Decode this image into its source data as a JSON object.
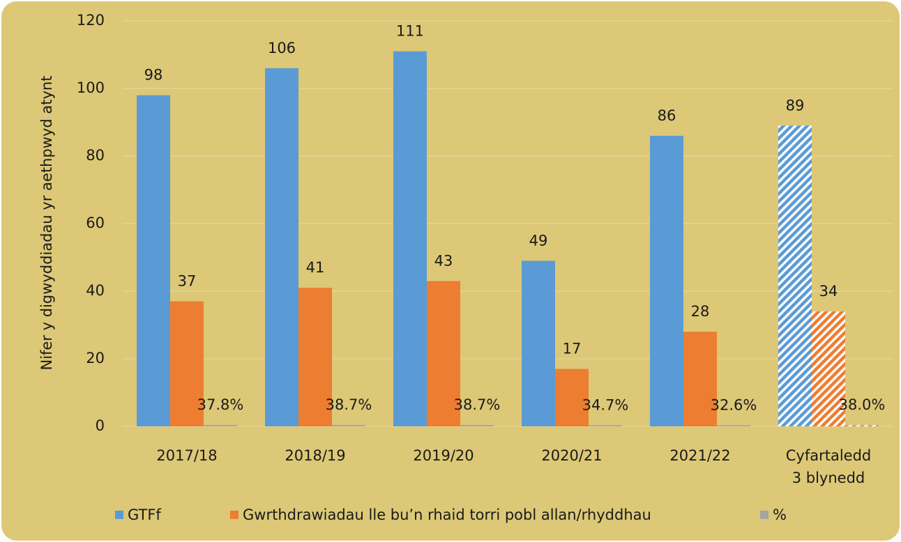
{
  "chart_data": {
    "type": "bar",
    "y_axis_label": "Nifer y digwyddiadau yr aethpwyd atynt",
    "categories": [
      "2017/18",
      "2018/19",
      "2019/20",
      "2020/21",
      "2021/22",
      "Cyfartaledd\n3 blynedd"
    ],
    "series": [
      {
        "name": "GTFf",
        "color": "#5b9bd5",
        "values": [
          98,
          106,
          111,
          49,
          86,
          89
        ]
      },
      {
        "name": "Gwrthdrawiadau lle bu’n rhaid torri pobl allan/rhyddhau",
        "color": "#ed7d31",
        "values": [
          37,
          41,
          43,
          17,
          28,
          34
        ]
      },
      {
        "name": "%",
        "color": "#a5a5a5",
        "values": [
          0.378,
          0.387,
          0.387,
          0.347,
          0.326,
          0.38
        ],
        "value_labels": [
          "37.8%",
          "38.7%",
          "38.7%",
          "34.7%",
          "32.6%",
          "38.0%"
        ]
      }
    ],
    "hatched_categories": [
      5
    ],
    "ylim": [
      0,
      120
    ],
    "yticks": [
      0,
      20,
      40,
      60,
      80,
      100,
      120
    ],
    "grid": true,
    "legend": "bottom"
  }
}
